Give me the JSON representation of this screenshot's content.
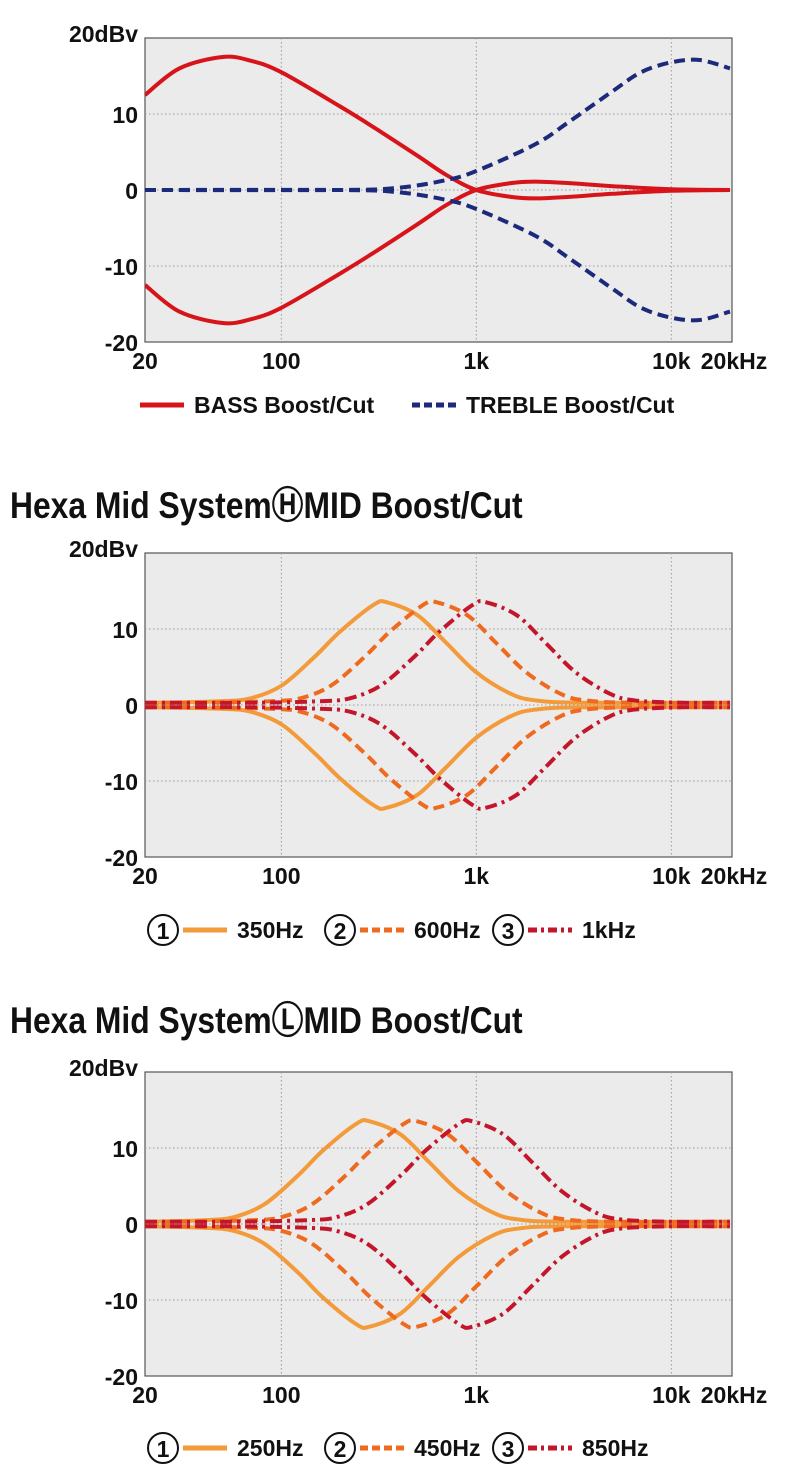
{
  "colors": {
    "plot_bg": "#ebebeb",
    "grid": "#9a9a9a",
    "bass": "#d7141a",
    "treble": "#1c2a7c",
    "mid1": "#f39a3b",
    "mid2": "#ee6a1f",
    "mid3": "#c4162a"
  },
  "chart_data": [
    {
      "type": "line",
      "title": "",
      "x_scale": "log",
      "xlim": [
        20,
        20000
      ],
      "ylim": [
        -20,
        20
      ],
      "grid": true,
      "legend_position": "bottom",
      "x_ticks": [
        {
          "value": 20,
          "label": "20"
        },
        {
          "value": 100,
          "label": "100"
        },
        {
          "value": 1000,
          "label": "1k"
        },
        {
          "value": 10000,
          "label": "10k"
        },
        {
          "value": 20000,
          "label": "20kHz"
        }
      ],
      "y_ticks": [
        {
          "value": 20,
          "label": "20dBv"
        },
        {
          "value": 10,
          "label": "10"
        },
        {
          "value": 0,
          "label": "0"
        },
        {
          "value": -10,
          "label": "-10"
        },
        {
          "value": -20,
          "label": "-20"
        }
      ],
      "series": [
        {
          "name": "BASS Boost/Cut",
          "color": "#d7141a",
          "style": "solid",
          "freq": [
            20,
            30,
            50,
            70,
            100,
            200,
            300,
            500,
            700,
            1000,
            1500,
            2000,
            3000,
            5000,
            10000,
            20000
          ],
          "boost_db": [
            12.5,
            16,
            17.5,
            17,
            15.5,
            11,
            8.2,
            4.5,
            2,
            0,
            -0.9,
            -1.1,
            -0.9,
            -0.5,
            -0.1,
            0
          ],
          "cut_db": [
            -12.5,
            -16,
            -17.5,
            -17,
            -15.5,
            -11,
            -8.2,
            -4.5,
            -2,
            0,
            0.9,
            1.1,
            0.9,
            0.5,
            0.1,
            0
          ]
        },
        {
          "name": "TREBLE Boost/Cut",
          "color": "#1c2a7c",
          "style": "dashed",
          "freq": [
            20,
            200,
            400,
            700,
            1000,
            2000,
            3000,
            5000,
            7000,
            10000,
            14000,
            20000
          ],
          "boost_db": [
            0,
            0,
            0.3,
            1.3,
            2.5,
            6,
            9,
            13,
            15.5,
            16.8,
            17.1,
            16
          ],
          "cut_db": [
            0,
            0,
            -0.3,
            -1.3,
            -2.5,
            -6,
            -9,
            -13,
            -15.5,
            -16.8,
            -17.1,
            -16
          ]
        }
      ]
    },
    {
      "type": "line",
      "title": "Hexa Mid SystemⒽMID Boost/Cut",
      "x_scale": "log",
      "xlim": [
        20,
        20000
      ],
      "ylim": [
        -20,
        20
      ],
      "grid": true,
      "legend_position": "bottom",
      "x_ticks": [
        {
          "value": 20,
          "label": "20"
        },
        {
          "value": 100,
          "label": "100"
        },
        {
          "value": 1000,
          "label": "1k"
        },
        {
          "value": 10000,
          "label": "10k"
        },
        {
          "value": 20000,
          "label": "20kHz"
        }
      ],
      "y_ticks": [
        {
          "value": 20,
          "label": "20dBv"
        },
        {
          "value": 10,
          "label": "10"
        },
        {
          "value": 0,
          "label": "0"
        },
        {
          "value": -10,
          "label": "-10"
        },
        {
          "value": -20,
          "label": "-20"
        }
      ],
      "series": [
        {
          "name": "350Hz",
          "marker": "1",
          "color": "#f39a3b",
          "style": "solid",
          "freq": [
            20,
            22,
            49,
            70,
            101,
            149,
            201,
            298,
            350,
            500,
            700,
            1000,
            1494,
            2013,
            3500,
            20000
          ],
          "boost_db": [
            0.3,
            0.3,
            0.5,
            0.9,
            2.6,
            6.4,
            9.7,
            13.2,
            13.5,
            11.8,
            8.2,
            4.3,
            1.5,
            0.6,
            0.3,
            0.3
          ],
          "cut_db": [
            -0.3,
            -0.3,
            -0.5,
            -0.9,
            -2.6,
            -6.4,
            -9.7,
            -13.2,
            -13.5,
            -11.8,
            -8.2,
            -4.3,
            -1.5,
            -0.6,
            -0.3,
            -0.3
          ]
        },
        {
          "name": "600Hz",
          "marker": "2",
          "color": "#ee6a1f",
          "style": "dashed",
          "freq": [
            20,
            40,
            89,
            126,
            181,
            269,
            362,
            536,
            630,
            901,
            1260,
            1802,
            2690,
            3623,
            6300,
            20000
          ],
          "boost_db": [
            0.3,
            0.3,
            0.5,
            0.9,
            2.6,
            6.4,
            9.7,
            13.2,
            13.5,
            11.8,
            8.2,
            4.3,
            1.5,
            0.6,
            0.3,
            0.3
          ],
          "cut_db": [
            -0.3,
            -0.3,
            -0.5,
            -0.9,
            -2.6,
            -6.4,
            -9.7,
            -13.2,
            -13.5,
            -11.8,
            -8.2,
            -4.3,
            -1.5,
            -0.6,
            -0.3,
            -0.3
          ]
        },
        {
          "name": "1kHz",
          "marker": "3",
          "color": "#c4162a",
          "style": "dashdot",
          "freq": [
            20,
            71,
            159,
            226,
            325,
            483,
            650,
            962,
            1130,
            1616,
            2260,
            3232,
            4825,
            6498,
            11300,
            20000
          ],
          "boost_db": [
            0.3,
            0.3,
            0.5,
            0.9,
            2.6,
            6.4,
            9.7,
            13.2,
            13.5,
            11.8,
            8.2,
            4.3,
            1.5,
            0.6,
            0.3,
            0.3
          ],
          "cut_db": [
            -0.3,
            -0.3,
            -0.5,
            -0.9,
            -2.6,
            -6.4,
            -9.7,
            -13.2,
            -13.5,
            -11.8,
            -8.2,
            -4.3,
            -1.5,
            -0.6,
            -0.3,
            -0.3
          ]
        }
      ]
    },
    {
      "type": "line",
      "title": "Hexa Mid SystemⓁMID Boost/Cut",
      "x_scale": "log",
      "xlim": [
        20,
        20000
      ],
      "ylim": [
        -20,
        20
      ],
      "grid": true,
      "legend_position": "bottom",
      "x_ticks": [
        {
          "value": 20,
          "label": "20"
        },
        {
          "value": 100,
          "label": "100"
        },
        {
          "value": 1000,
          "label": "1k"
        },
        {
          "value": 10000,
          "label": "10k"
        },
        {
          "value": 20000,
          "label": "20kHz"
        }
      ],
      "y_ticks": [
        {
          "value": 20,
          "label": "20dBv"
        },
        {
          "value": 10,
          "label": "10"
        },
        {
          "value": 0,
          "label": "0"
        },
        {
          "value": -10,
          "label": "-10"
        },
        {
          "value": -20,
          "label": "-20"
        }
      ],
      "series": [
        {
          "name": "250Hz",
          "marker": "1",
          "color": "#f39a3b",
          "style": "solid",
          "freq": [
            20,
            40,
            57,
            82,
            122,
            164,
            243,
            285,
            408,
            570,
            815,
            1217,
            1639,
            2850,
            20000
          ],
          "boost_db": [
            0.3,
            0.5,
            0.9,
            2.6,
            6.4,
            9.7,
            13.2,
            13.5,
            11.8,
            8.2,
            4.3,
            1.5,
            0.6,
            0.3,
            0.3
          ],
          "cut_db": [
            -0.3,
            -0.5,
            -0.9,
            -2.6,
            -6.4,
            -9.7,
            -13.2,
            -13.5,
            -11.8,
            -8.2,
            -4.3,
            -1.5,
            -0.6,
            -0.3,
            -0.3
          ]
        },
        {
          "name": "450Hz",
          "marker": "2",
          "color": "#ee6a1f",
          "style": "dashed",
          "freq": [
            20,
            32,
            71,
            100,
            144,
            214,
            288,
            426,
            500,
            715,
            1000,
            1430,
            2135,
            2875,
            5000,
            20000
          ],
          "boost_db": [
            0.3,
            0.3,
            0.5,
            0.9,
            2.6,
            6.4,
            9.7,
            13.2,
            13.5,
            11.8,
            8.2,
            4.3,
            1.5,
            0.6,
            0.3,
            0.3
          ],
          "cut_db": [
            -0.3,
            -0.3,
            -0.5,
            -0.9,
            -2.6,
            -6.4,
            -9.7,
            -13.2,
            -13.5,
            -11.8,
            -8.2,
            -4.3,
            -1.5,
            -0.6,
            -0.3,
            -0.3
          ]
        },
        {
          "name": "850Hz",
          "marker": "3",
          "color": "#c4162a",
          "style": "dashdot",
          "freq": [
            20,
            60,
            135,
            192,
            276,
            410,
            552,
            817,
            960,
            1373,
            1920,
            2746,
            4099,
            5520,
            9600,
            20000
          ],
          "boost_db": [
            0.3,
            0.3,
            0.5,
            0.9,
            2.6,
            6.4,
            9.7,
            13.2,
            13.5,
            11.8,
            8.2,
            4.3,
            1.5,
            0.6,
            0.3,
            0.3
          ],
          "cut_db": [
            -0.3,
            -0.3,
            -0.5,
            -0.9,
            -2.6,
            -6.4,
            -9.7,
            -13.2,
            -13.5,
            -11.8,
            -8.2,
            -4.3,
            -1.5,
            -0.6,
            -0.3,
            -0.3
          ]
        }
      ]
    }
  ]
}
